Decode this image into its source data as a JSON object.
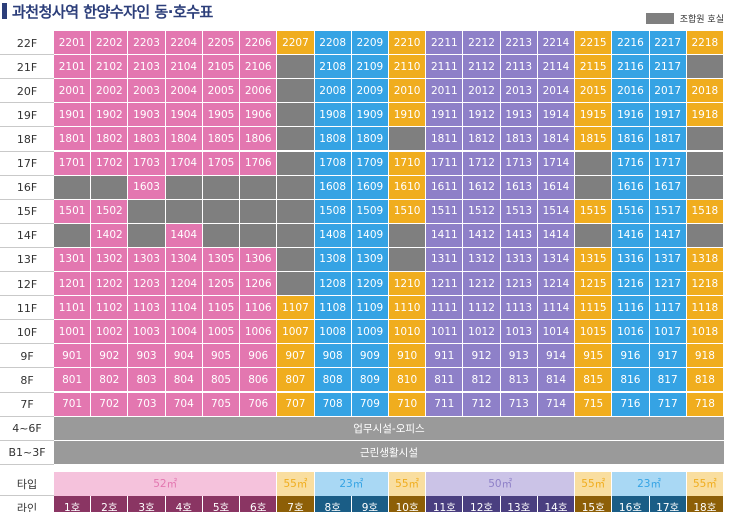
{
  "title": "과천청사역 한양수자인 동·호수표",
  "legend": {
    "label": "조합원 호실",
    "color": "#7f7f7f"
  },
  "colors": {
    "P": "#e377b0",
    "O": "#f0ad1e",
    "B": "#35a3e4",
    "V": "#8e80c8",
    "G": "#7f7f7f",
    "band": "#9a9a9a",
    "type_P": "#f5c2dc",
    "type_O": "#f9dea0",
    "type_B": "#a9d8f4",
    "type_V": "#cbc3e7",
    "line_P": "#8a3563",
    "line_O": "#8d5f07",
    "line_B": "#1a5d86",
    "line_V": "#4a3f80"
  },
  "column_colors": [
    "P",
    "P",
    "P",
    "P",
    "P",
    "P",
    "O",
    "B",
    "B",
    "O",
    "V",
    "V",
    "V",
    "V",
    "O",
    "B",
    "B",
    "O"
  ],
  "floors": [
    {
      "label": "22F",
      "cells": [
        "2201",
        "2202",
        "2203",
        "2204",
        "2205",
        "2206",
        "2207",
        "2208",
        "2209",
        "2210",
        "2211",
        "2212",
        "2213",
        "2214",
        "2215",
        "2216",
        "2217",
        "2218"
      ]
    },
    {
      "label": "21F",
      "cells": [
        "2101",
        "2102",
        "2103",
        "2104",
        "2105",
        "2106",
        "",
        "2108",
        "2109",
        "2110",
        "2111",
        "2112",
        "2113",
        "2114",
        "2115",
        "2116",
        "2117",
        ""
      ]
    },
    {
      "label": "20F",
      "cells": [
        "2001",
        "2002",
        "2003",
        "2004",
        "2005",
        "2006",
        "",
        "2008",
        "2009",
        "2010",
        "2011",
        "2012",
        "2013",
        "2014",
        "2015",
        "2016",
        "2017",
        "2018"
      ]
    },
    {
      "label": "19F",
      "cells": [
        "1901",
        "1902",
        "1903",
        "1904",
        "1905",
        "1906",
        "",
        "1908",
        "1909",
        "1910",
        "1911",
        "1912",
        "1913",
        "1914",
        "1915",
        "1916",
        "1917",
        "1918"
      ]
    },
    {
      "label": "18F",
      "cells": [
        "1801",
        "1802",
        "1803",
        "1804",
        "1805",
        "1806",
        "",
        "1808",
        "1809",
        "",
        "1811",
        "1812",
        "1813",
        "1814",
        "1815",
        "1816",
        "1817",
        ""
      ]
    },
    {
      "label": "17F",
      "cells": [
        "1701",
        "1702",
        "1703",
        "1704",
        "1705",
        "1706",
        "",
        "1708",
        "1709",
        "1710",
        "1711",
        "1712",
        "1713",
        "1714",
        "",
        "1716",
        "1717",
        ""
      ]
    },
    {
      "label": "16F",
      "cells": [
        "",
        "",
        "1603",
        "",
        "",
        "",
        "",
        "1608",
        "1609",
        "1610",
        "1611",
        "1612",
        "1613",
        "1614",
        "",
        "1616",
        "1617",
        ""
      ]
    },
    {
      "label": "15F",
      "cells": [
        "1501",
        "1502",
        "",
        "",
        "",
        "",
        "",
        "1508",
        "1509",
        "1510",
        "1511",
        "1512",
        "1513",
        "1514",
        "1515",
        "1516",
        "1517",
        "1518"
      ]
    },
    {
      "label": "14F",
      "cells": [
        "",
        "1402",
        "",
        "1404",
        "",
        "",
        "",
        "1408",
        "1409",
        "",
        "1411",
        "1412",
        "1413",
        "1414",
        "",
        "1416",
        "1417",
        ""
      ]
    },
    {
      "label": "13F",
      "cells": [
        "1301",
        "1302",
        "1303",
        "1304",
        "1305",
        "1306",
        "",
        "1308",
        "1309",
        "",
        "1311",
        "1312",
        "1313",
        "1314",
        "1315",
        "1316",
        "1317",
        "1318"
      ]
    },
    {
      "label": "12F",
      "cells": [
        "1201",
        "1202",
        "1203",
        "1204",
        "1205",
        "1206",
        "",
        "1208",
        "1209",
        "1210",
        "1211",
        "1212",
        "1213",
        "1214",
        "1215",
        "1216",
        "1217",
        "1218"
      ]
    },
    {
      "label": "11F",
      "cells": [
        "1101",
        "1102",
        "1103",
        "1104",
        "1105",
        "1106",
        "1107",
        "1108",
        "1109",
        "1110",
        "1111",
        "1112",
        "1113",
        "1114",
        "1115",
        "1116",
        "1117",
        "1118"
      ]
    },
    {
      "label": "10F",
      "cells": [
        "1001",
        "1002",
        "1003",
        "1004",
        "1005",
        "1006",
        "1007",
        "1008",
        "1009",
        "1010",
        "1011",
        "1012",
        "1013",
        "1014",
        "1015",
        "1016",
        "1017",
        "1018"
      ]
    },
    {
      "label": "9F",
      "cells": [
        "901",
        "902",
        "903",
        "904",
        "905",
        "906",
        "907",
        "908",
        "909",
        "910",
        "911",
        "912",
        "913",
        "914",
        "915",
        "916",
        "917",
        "918"
      ]
    },
    {
      "label": "8F",
      "cells": [
        "801",
        "802",
        "803",
        "804",
        "805",
        "806",
        "807",
        "808",
        "809",
        "810",
        "811",
        "812",
        "813",
        "814",
        "815",
        "816",
        "817",
        "818"
      ]
    },
    {
      "label": "7F",
      "cells": [
        "701",
        "702",
        "703",
        "704",
        "705",
        "706",
        "707",
        "708",
        "709",
        "710",
        "711",
        "712",
        "713",
        "714",
        "715",
        "716",
        "717",
        "718"
      ]
    }
  ],
  "bands": [
    {
      "label": "4~6F",
      "text": "업무시설-오피스"
    },
    {
      "label": "B1~3F",
      "text": "근린생활시설"
    }
  ],
  "type_row": {
    "label": "타입",
    "segments": [
      {
        "text": "52㎡",
        "span": 6,
        "color": "P"
      },
      {
        "text": "55㎡",
        "span": 1,
        "color": "O"
      },
      {
        "text": "23㎡",
        "span": 2,
        "color": "B"
      },
      {
        "text": "55㎡",
        "span": 1,
        "color": "O"
      },
      {
        "text": "50㎡",
        "span": 4,
        "color": "V"
      },
      {
        "text": "55㎡",
        "span": 1,
        "color": "O"
      },
      {
        "text": "23㎡",
        "span": 2,
        "color": "B"
      },
      {
        "text": "55㎡",
        "span": 1,
        "color": "O"
      }
    ]
  },
  "line_row": {
    "label": "라인",
    "cells": [
      "1호",
      "2호",
      "3호",
      "4호",
      "5호",
      "6호",
      "7호",
      "8호",
      "9호",
      "10호",
      "11호",
      "12호",
      "13호",
      "14호",
      "15호",
      "16호",
      "17호",
      "18호"
    ]
  }
}
